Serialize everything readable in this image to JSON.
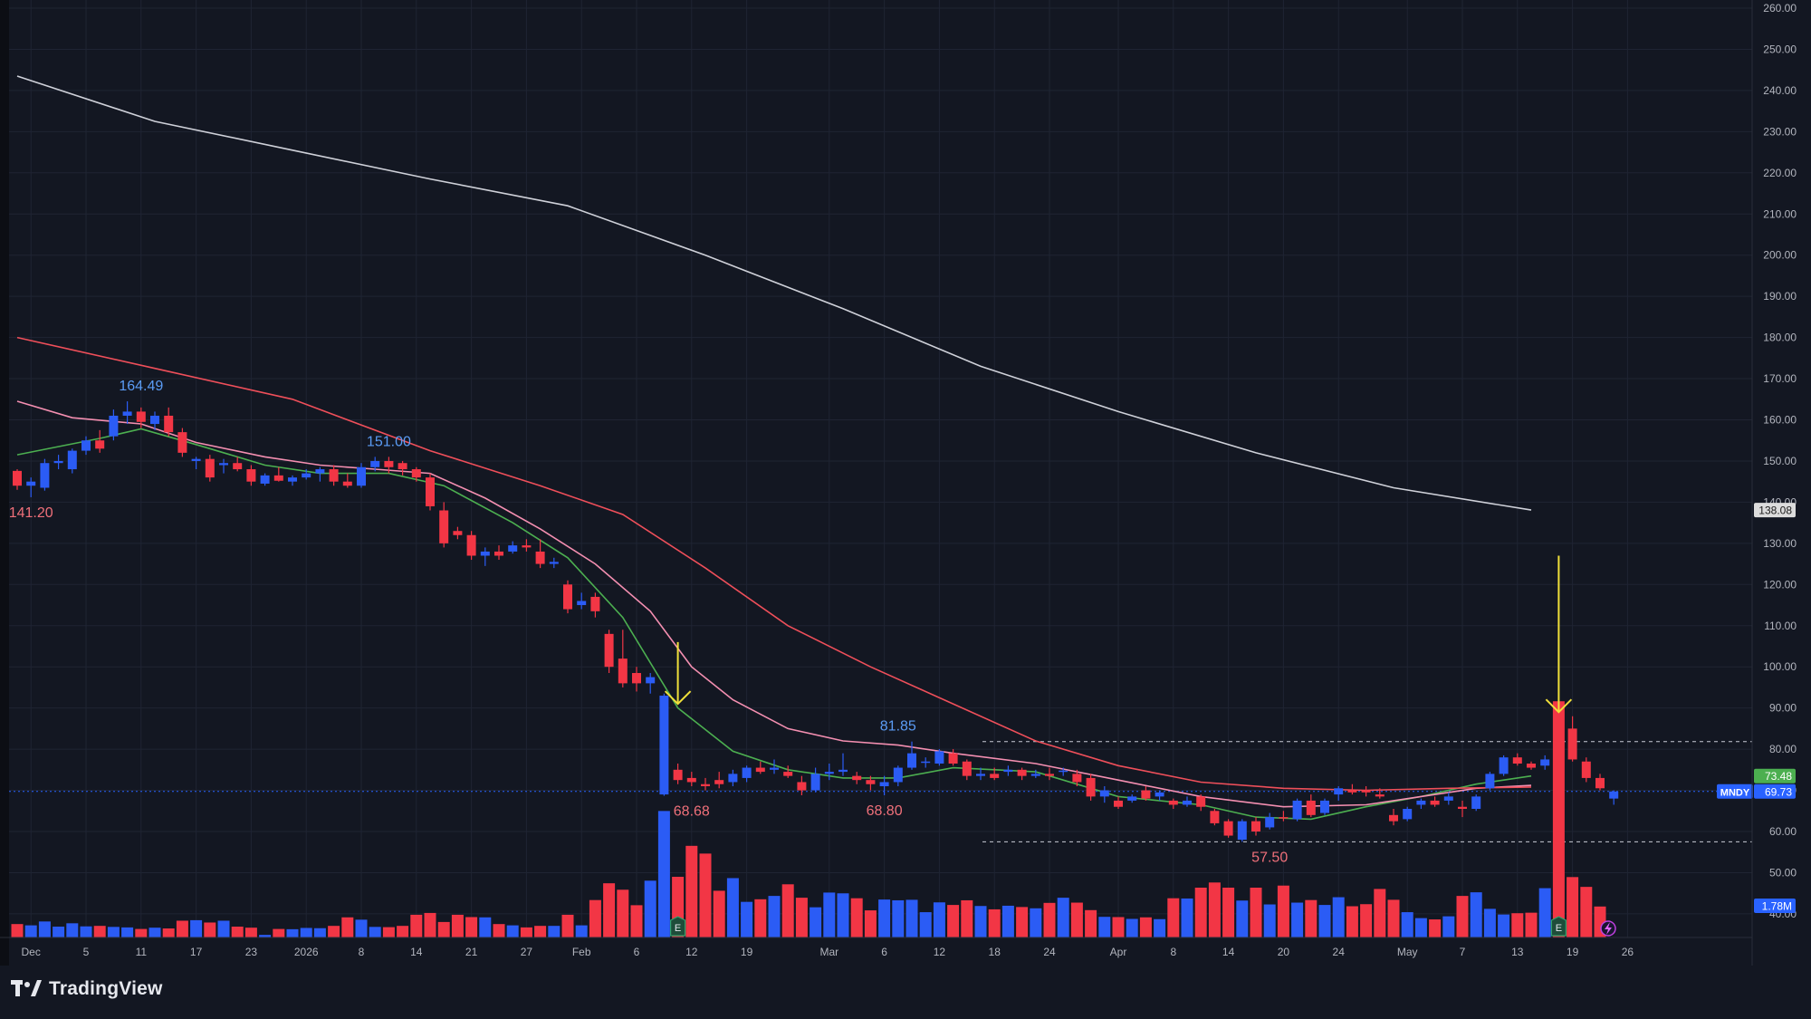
{
  "chart_data": {
    "type": "candlestick",
    "symbol": "MNDY",
    "y_axis": {
      "range": [
        37,
        262
      ],
      "ticks": [
        "260.00",
        "250.00",
        "240.00",
        "230.00",
        "220.00",
        "210.00",
        "200.00",
        "190.00",
        "180.00",
        "170.00",
        "160.00",
        "150.00",
        "140.00",
        "130.00",
        "120.00",
        "110.00",
        "100.00",
        "90.00",
        "80.00",
        "70.00",
        "60.00",
        "50.00",
        "40.00"
      ]
    },
    "x_axis": {
      "ticks": [
        {
          "label": "Dec",
          "bar": 1
        },
        {
          "label": "5",
          "bar": 5
        },
        {
          "label": "11",
          "bar": 9
        },
        {
          "label": "17",
          "bar": 13
        },
        {
          "label": "23",
          "bar": 17
        },
        {
          "label": "2026",
          "bar": 21
        },
        {
          "label": "8",
          "bar": 25
        },
        {
          "label": "14",
          "bar": 29
        },
        {
          "label": "21",
          "bar": 33
        },
        {
          "label": "27",
          "bar": 37
        },
        {
          "label": "Feb",
          "bar": 41
        },
        {
          "label": "6",
          "bar": 45
        },
        {
          "label": "12",
          "bar": 49
        },
        {
          "label": "19",
          "bar": 53
        },
        {
          "label": "Mar",
          "bar": 59
        },
        {
          "label": "6",
          "bar": 63
        },
        {
          "label": "12",
          "bar": 67
        },
        {
          "label": "18",
          "bar": 71
        },
        {
          "label": "24",
          "bar": 75
        },
        {
          "label": "Apr",
          "bar": 80
        },
        {
          "label": "8",
          "bar": 84
        },
        {
          "label": "14",
          "bar": 88
        },
        {
          "label": "20",
          "bar": 92
        },
        {
          "label": "24",
          "bar": 96
        },
        {
          "label": "May",
          "bar": 101
        },
        {
          "label": "7",
          "bar": 105
        },
        {
          "label": "13",
          "bar": 109
        },
        {
          "label": "19",
          "bar": 113
        },
        {
          "label": "26",
          "bar": 117
        }
      ]
    },
    "ohlc": [
      [
        147.6,
        148.0,
        143.0,
        144.0
      ],
      [
        144.0,
        146.0,
        141.2,
        145.0
      ],
      [
        143.5,
        150.5,
        142.8,
        149.5
      ],
      [
        149.5,
        151.5,
        148.0,
        150.0
      ],
      [
        148.0,
        153.0,
        147.0,
        152.5
      ],
      [
        152.5,
        156.0,
        151.5,
        155.0
      ],
      [
        155.0,
        157.5,
        152.0,
        153.0
      ],
      [
        156.0,
        162.5,
        155.0,
        161.0
      ],
      [
        161.0,
        164.49,
        159.0,
        162.0
      ],
      [
        162.0,
        163.0,
        158.0,
        159.5
      ],
      [
        159.0,
        162.0,
        157.5,
        161.0
      ],
      [
        161.0,
        163.0,
        156.0,
        157.0
      ],
      [
        157.0,
        158.0,
        151.0,
        152.0
      ],
      [
        150.0,
        151.0,
        148.0,
        150.5
      ],
      [
        150.5,
        151.5,
        145.0,
        146.0
      ],
      [
        149.0,
        150.5,
        147.0,
        149.5
      ],
      [
        149.5,
        151.0,
        147.5,
        148.0
      ],
      [
        148.0,
        149.0,
        144.0,
        145.0
      ],
      [
        144.5,
        147.0,
        144.0,
        146.5
      ],
      [
        146.5,
        148.5,
        145.0,
        145.2
      ],
      [
        145.0,
        146.5,
        144.0,
        146.0
      ],
      [
        146.0,
        148.0,
        145.5,
        147.0
      ],
      [
        147.0,
        148.5,
        145.0,
        148.0
      ],
      [
        148.0,
        149.0,
        144.0,
        145.0
      ],
      [
        145.0,
        147.0,
        143.5,
        144.0
      ],
      [
        144.0,
        149.5,
        143.5,
        148.5
      ],
      [
        148.5,
        151.0,
        147.5,
        150.0
      ],
      [
        150.0,
        151.0,
        147.0,
        148.5
      ],
      [
        149.5,
        150.0,
        146.5,
        148.0
      ],
      [
        148.0,
        148.5,
        145.0,
        146.0
      ],
      [
        146.0,
        147.0,
        138.0,
        139.0
      ],
      [
        138.0,
        140.0,
        129.0,
        130.0
      ],
      [
        133.0,
        134.0,
        131.0,
        132.0
      ],
      [
        132.0,
        133.0,
        126.0,
        127.0
      ],
      [
        127.0,
        129.0,
        124.5,
        128.0
      ],
      [
        128.0,
        129.5,
        126.0,
        127.0
      ],
      [
        128.0,
        130.5,
        127.5,
        129.5
      ],
      [
        129.5,
        131.0,
        128.0,
        129.0
      ],
      [
        128.0,
        131.0,
        124.0,
        125.0
      ],
      [
        125.0,
        126.5,
        124.0,
        125.5
      ],
      [
        120.0,
        121.0,
        113.0,
        114.0
      ],
      [
        115.0,
        118.0,
        114.0,
        116.0
      ],
      [
        117.0,
        118.0,
        112.0,
        113.5
      ],
      [
        108.0,
        109.0,
        98.5,
        100.0
      ],
      [
        102.0,
        109.0,
        95.0,
        96.0
      ],
      [
        98.5,
        100.0,
        94.0,
        96.0
      ],
      [
        96.0,
        98.5,
        93.5,
        97.5
      ],
      [
        69.0,
        93.5,
        68.68,
        93.0
      ],
      [
        75.0,
        76.5,
        71.5,
        72.5
      ],
      [
        73.0,
        74.5,
        71.0,
        72.0
      ],
      [
        71.5,
        73.0,
        70.0,
        71.0
      ],
      [
        72.5,
        74.5,
        70.5,
        71.5
      ],
      [
        72.0,
        75.0,
        71.0,
        74.0
      ],
      [
        73.0,
        76.0,
        72.0,
        75.5
      ],
      [
        75.5,
        77.0,
        74.0,
        74.5
      ],
      [
        75.0,
        77.5,
        74.0,
        75.5
      ],
      [
        74.5,
        76.0,
        73.0,
        73.5
      ],
      [
        72.0,
        73.5,
        68.8,
        70.0
      ],
      [
        70.0,
        75.5,
        69.5,
        74.0
      ],
      [
        74.0,
        76.5,
        72.5,
        74.5
      ],
      [
        74.5,
        79.0,
        73.5,
        75.0
      ],
      [
        73.5,
        74.5,
        71.5,
        72.5
      ],
      [
        72.5,
        73.5,
        70.0,
        71.5
      ],
      [
        71.0,
        73.5,
        68.8,
        72.0
      ],
      [
        72.0,
        76.0,
        71.0,
        75.5
      ],
      [
        75.5,
        81.85,
        75.0,
        79.0
      ],
      [
        77.0,
        78.0,
        75.5,
        77.0
      ],
      [
        76.5,
        80.0,
        76.0,
        79.5
      ],
      [
        79.0,
        80.0,
        76.0,
        76.5
      ],
      [
        77.0,
        77.5,
        72.5,
        73.5
      ],
      [
        73.5,
        75.5,
        72.5,
        74.0
      ],
      [
        74.0,
        75.5,
        72.5,
        73.0
      ],
      [
        74.5,
        76.0,
        73.5,
        75.0
      ],
      [
        75.0,
        75.5,
        72.5,
        73.5
      ],
      [
        73.5,
        75.0,
        73.0,
        74.0
      ],
      [
        74.0,
        75.5,
        72.5,
        73.5
      ],
      [
        74.5,
        75.5,
        73.5,
        74.8
      ],
      [
        74.0,
        75.0,
        71.0,
        72.0
      ],
      [
        73.0,
        74.0,
        67.5,
        68.5
      ],
      [
        68.5,
        71.0,
        67.0,
        70.0
      ],
      [
        67.5,
        68.5,
        65.5,
        66.0
      ],
      [
        67.5,
        69.0,
        67.0,
        68.5
      ],
      [
        70.0,
        71.0,
        67.5,
        68.0
      ],
      [
        68.5,
        70.0,
        67.5,
        69.5
      ],
      [
        67.5,
        68.0,
        65.5,
        66.5
      ],
      [
        66.5,
        68.5,
        66.0,
        67.5
      ],
      [
        68.5,
        69.0,
        65.0,
        66.0
      ],
      [
        65.0,
        65.5,
        61.5,
        62.0
      ],
      [
        62.5,
        63.0,
        58.5,
        59.0
      ],
      [
        58.0,
        63.0,
        57.5,
        62.5
      ],
      [
        62.5,
        63.5,
        59.0,
        60.0
      ],
      [
        61.0,
        64.5,
        60.5,
        63.5
      ],
      [
        63.5,
        65.0,
        62.5,
        63.2
      ],
      [
        63.0,
        68.0,
        62.5,
        67.5
      ],
      [
        67.5,
        69.0,
        63.5,
        64.0
      ],
      [
        64.5,
        68.0,
        64.0,
        67.5
      ],
      [
        69.0,
        71.0,
        67.5,
        70.5
      ],
      [
        70.0,
        71.5,
        69.0,
        69.5
      ],
      [
        70.0,
        71.0,
        68.5,
        69.5
      ],
      [
        69.0,
        70.5,
        68.0,
        68.5
      ],
      [
        64.0,
        65.5,
        61.5,
        62.5
      ],
      [
        63.0,
        66.0,
        62.5,
        65.5
      ],
      [
        66.5,
        68.0,
        65.5,
        67.5
      ],
      [
        67.5,
        68.5,
        66.0,
        66.5
      ],
      [
        67.5,
        69.5,
        66.5,
        68.5
      ],
      [
        66.0,
        67.5,
        63.5,
        65.5
      ],
      [
        65.5,
        69.0,
        65.0,
        68.5
      ],
      [
        70.5,
        74.5,
        70.0,
        74.0
      ],
      [
        74.0,
        78.5,
        73.5,
        78.0
      ],
      [
        78.0,
        79.0,
        76.0,
        76.5
      ],
      [
        76.5,
        77.0,
        75.0,
        75.5
      ],
      [
        76.0,
        78.5,
        75.0,
        77.5
      ],
      [
        77.5,
        78.5,
        74.5,
        77.0
      ],
      [
        85.0,
        88.0,
        77.0,
        77.5
      ],
      [
        77.0,
        78.0,
        72.0,
        73.0
      ],
      [
        73.0,
        74.0,
        70.0,
        70.5
      ],
      [
        68.0,
        70.0,
        66.5,
        69.73
      ]
    ],
    "volume_in_millions": [
      0.52,
      0.47,
      0.62,
      0.42,
      0.55,
      0.43,
      0.45,
      0.41,
      0.39,
      0.33,
      0.38,
      0.35,
      0.65,
      0.67,
      0.58,
      0.65,
      0.42,
      0.38,
      0.1,
      0.33,
      0.32,
      0.37,
      0.36,
      0.45,
      0.78,
      0.69,
      0.41,
      0.4,
      0.45,
      0.88,
      0.95,
      0.6,
      0.88,
      0.79,
      0.78,
      0.52,
      0.47,
      0.39,
      0.45,
      0.45,
      0.88,
      0.47,
      1.45,
      2.1,
      1.85,
      1.25,
      2.2,
      4.9,
      2.35,
      3.55,
      3.25,
      1.81,
      2.3,
      1.38,
      1.48,
      1.61,
      2.06,
      1.54,
      1.17,
      1.74,
      1.71,
      1.52,
      1.05,
      1.47,
      1.44,
      1.46,
      0.98,
      1.36,
      1.26,
      1.44,
      1.22,
      1.09,
      1.23,
      1.18,
      1.13,
      1.34,
      1.54,
      1.35,
      1.06,
      0.8,
      0.79,
      0.72,
      0.78,
      0.71,
      1.52,
      1.51,
      1.93,
      2.13,
      1.93,
      1.43,
      1.93,
      1.28,
      2.01,
      1.35,
      1.45,
      1.26,
      1.56,
      1.21,
      1.29,
      1.88,
      1.46,
      0.98,
      0.75,
      0.7,
      0.82,
      1.61,
      1.75,
      1.11,
      0.89,
      0.94,
      0.96,
      1.91,
      9.15,
      2.34,
      1.96,
      1.2
    ],
    "moving_averages": [
      {
        "color": "#4caf50",
        "points": [
          [
            0,
            151.5
          ],
          [
            6,
            155.5
          ],
          [
            9,
            157.8
          ],
          [
            13,
            154.0
          ],
          [
            18,
            149.0
          ],
          [
            22,
            147.0
          ],
          [
            27,
            147.0
          ],
          [
            31,
            144.0
          ],
          [
            36,
            135.0
          ],
          [
            40,
            126.5
          ],
          [
            44,
            112.0
          ],
          [
            48,
            90.0
          ],
          [
            52,
            79.5
          ],
          [
            56,
            75.0
          ],
          [
            60,
            73.0
          ],
          [
            64,
            73.0
          ],
          [
            68,
            75.5
          ],
          [
            74,
            74.5
          ],
          [
            80,
            68.5
          ],
          [
            86,
            66.5
          ],
          [
            90,
            63.5
          ],
          [
            94,
            63.0
          ],
          [
            98,
            66.0
          ],
          [
            102,
            68.5
          ],
          [
            106,
            71.5
          ],
          [
            108,
            72.5
          ],
          [
            110,
            73.48
          ]
        ]
      },
      {
        "color": "#f48fb1",
        "points": [
          [
            0,
            164.5
          ],
          [
            4,
            160.5
          ],
          [
            9,
            159.0
          ],
          [
            13,
            154.5
          ],
          [
            18,
            151.0
          ],
          [
            22,
            149.0
          ],
          [
            26,
            148.0
          ],
          [
            30,
            147.0
          ],
          [
            34,
            141.0
          ],
          [
            38,
            133.5
          ],
          [
            42,
            125.0
          ],
          [
            46,
            113.5
          ],
          [
            49,
            100.0
          ],
          [
            52,
            92.0
          ],
          [
            56,
            85.0
          ],
          [
            60,
            82.0
          ],
          [
            64,
            81.0
          ],
          [
            68,
            79.0
          ],
          [
            74,
            76.5
          ],
          [
            80,
            72.5
          ],
          [
            86,
            68.5
          ],
          [
            92,
            66.0
          ],
          [
            98,
            66.5
          ],
          [
            102,
            68.5
          ],
          [
            106,
            70.5
          ],
          [
            110,
            71.2
          ]
        ]
      },
      {
        "color": "#ef4f5a",
        "points": [
          [
            0,
            180.0
          ],
          [
            10,
            172.5
          ],
          [
            20,
            165.0
          ],
          [
            30,
            152.5
          ],
          [
            38,
            144.0
          ],
          [
            44,
            137.0
          ],
          [
            50,
            124.0
          ],
          [
            56,
            110.0
          ],
          [
            62,
            100.0
          ],
          [
            68,
            91.0
          ],
          [
            74,
            82.0
          ],
          [
            80,
            76.0
          ],
          [
            86,
            72.0
          ],
          [
            92,
            70.5
          ],
          [
            98,
            70.0
          ],
          [
            104,
            70.5
          ],
          [
            110,
            70.8
          ]
        ]
      },
      {
        "color": "#cfd1d9",
        "points": [
          [
            0,
            243.5
          ],
          [
            10,
            232.5
          ],
          [
            20,
            225.5
          ],
          [
            30,
            218.5
          ],
          [
            40,
            212.0
          ],
          [
            50,
            200.0
          ],
          [
            60,
            187.0
          ],
          [
            70,
            173.0
          ],
          [
            80,
            162.0
          ],
          [
            90,
            152.0
          ],
          [
            100,
            143.5
          ],
          [
            110,
            138.08
          ]
        ]
      }
    ],
    "price_labels": [
      {
        "text": "164.49",
        "bar": 9,
        "value": 164.49,
        "color": "#5b9cf5",
        "side": "above"
      },
      {
        "text": "141.20",
        "bar": 1,
        "value": 141.2,
        "color": "#f0707a",
        "side": "below"
      },
      {
        "text": "151.00",
        "bar": 27,
        "value": 151.0,
        "color": "#5b9cf5",
        "side": "above"
      },
      {
        "text": "81.85",
        "bar": 64,
        "value": 81.85,
        "color": "#5b9cf5",
        "side": "above"
      },
      {
        "text": "68.80",
        "bar": 63,
        "value": 68.8,
        "color": "#f0707a",
        "side": "below"
      },
      {
        "text": "68.68",
        "bar": 49,
        "value": 68.68,
        "color": "#f0707a",
        "side": "below"
      },
      {
        "text": "57.50",
        "bar": 91,
        "value": 57.5,
        "color": "#f0707a",
        "side": "below"
      }
    ],
    "horizontal_levels": [
      81.85,
      57.5
    ],
    "annotations": [
      {
        "kind": "arrow",
        "bar": 48,
        "from": 106,
        "to": 91,
        "color": "#f0e03a"
      },
      {
        "kind": "arrow",
        "bar": 112,
        "from": 127,
        "to": 89,
        "color": "#f0e03a"
      }
    ],
    "earnings_markers": [
      {
        "bar": 48,
        "label": "E"
      },
      {
        "bar": 112,
        "label": "E"
      }
    ],
    "axis_badges": [
      {
        "text": "138.08",
        "value": 138.08,
        "bg": "#dcdcdc",
        "fg": "#1a1a1a"
      },
      {
        "text": "73.48",
        "value": 73.48,
        "bg": "#4caf50",
        "fg": "#ffffff"
      },
      {
        "text": "69.73",
        "value": 69.73,
        "bg": "#2962ff",
        "fg": "#ffffff"
      }
    ],
    "symbol_badge": "MNDY",
    "volume_badge": "1.78M",
    "last_price": 69.73
  },
  "branding": {
    "name": "TradingView",
    "icon": "tradingview-logo-icon"
  },
  "colors": {
    "up": "#2b5cf5",
    "down": "#f23645",
    "background": "#131722",
    "grid": "#1f2433",
    "axis_text": "#b2b5be"
  }
}
